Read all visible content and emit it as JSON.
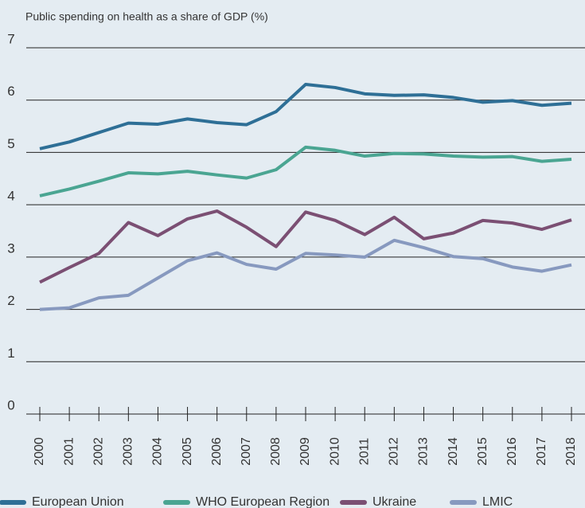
{
  "chart_data": {
    "type": "line",
    "ylabel": "Public spending on health as a share of GDP (%)",
    "categories": [
      "2000",
      "2001",
      "2002",
      "2003",
      "2004",
      "2005",
      "2006",
      "2007",
      "2008",
      "2009",
      "2010",
      "2011",
      "2012",
      "2013",
      "2014",
      "2015",
      "2016",
      "2017",
      "2018"
    ],
    "series": [
      {
        "name": "European Union",
        "color": "#2e6f96",
        "values": [
          5.07,
          5.2,
          5.38,
          5.56,
          5.54,
          5.64,
          5.57,
          5.53,
          5.78,
          6.3,
          6.24,
          6.12,
          6.09,
          6.1,
          6.05,
          5.96,
          5.99,
          5.9,
          5.94
        ]
      },
      {
        "name": "WHO European Region",
        "color": "#4aa592",
        "values": [
          4.17,
          4.3,
          4.45,
          4.61,
          4.59,
          4.64,
          4.57,
          4.51,
          4.67,
          5.1,
          5.04,
          4.93,
          4.98,
          4.97,
          4.93,
          4.91,
          4.92,
          4.83,
          4.87
        ]
      },
      {
        "name": "Ukraine",
        "color": "#7b4f73",
        "values": [
          2.52,
          2.8,
          3.07,
          3.66,
          3.41,
          3.73,
          3.88,
          3.57,
          3.2,
          3.86,
          3.7,
          3.43,
          3.76,
          3.35,
          3.46,
          3.7,
          3.65,
          3.53,
          3.71
        ]
      },
      {
        "name": "LMIC",
        "color": "#8799bf",
        "values": [
          2.0,
          2.03,
          2.22,
          2.27,
          2.6,
          2.93,
          3.08,
          2.86,
          2.77,
          3.07,
          3.04,
          3.0,
          3.32,
          3.18,
          3.01,
          2.97,
          2.81,
          2.73,
          2.85
        ]
      }
    ],
    "ylim": [
      0,
      7
    ],
    "yticks": [
      0,
      1,
      2,
      3,
      4,
      5,
      6,
      7
    ],
    "grid": true,
    "legend": "bottom"
  }
}
